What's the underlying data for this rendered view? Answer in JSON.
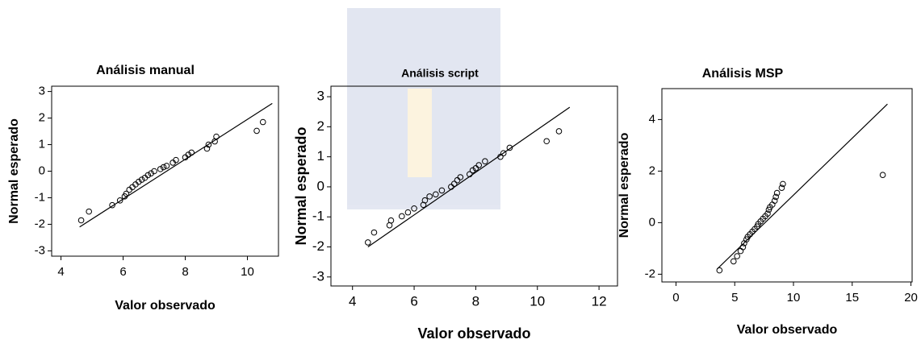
{
  "chart_data": [
    {
      "type": "scatter",
      "title": "Análisis manual",
      "x_label": "Valor observado",
      "y_label": "Normal esperado",
      "x": [
        4.65,
        4.9,
        5.65,
        5.9,
        6.05,
        6.1,
        6.2,
        6.3,
        6.4,
        6.5,
        6.6,
        6.7,
        6.8,
        6.9,
        7.0,
        7.2,
        7.3,
        7.4,
        7.6,
        7.7,
        8.0,
        8.1,
        8.2,
        8.7,
        8.75,
        8.95,
        9.0,
        10.3,
        10.5
      ],
      "values": [
        -1.85,
        -1.52,
        -1.28,
        -1.1,
        -0.95,
        -0.85,
        -0.7,
        -0.6,
        -0.5,
        -0.4,
        -0.32,
        -0.25,
        -0.15,
        -0.08,
        0,
        0.08,
        0.15,
        0.2,
        0.32,
        0.42,
        0.52,
        0.62,
        0.7,
        0.85,
        1.0,
        1.12,
        1.3,
        1.52,
        1.85
      ],
      "reference_line": {
        "x": [
          4.6,
          10.8
        ],
        "y": [
          -2.1,
          2.55
        ]
      },
      "xlim": [
        3.7,
        11.0
      ],
      "ylim": [
        -3.2,
        3.2
      ],
      "xticks": [
        4,
        6,
        8,
        10
      ],
      "yticks": [
        -3,
        -2,
        -1,
        0,
        1,
        2,
        3
      ]
    },
    {
      "type": "scatter",
      "title": "Análisis script",
      "x_label": "Valor observado",
      "y_label": "Normal esperado",
      "x": [
        4.5,
        4.7,
        5.2,
        5.25,
        5.6,
        5.8,
        6.0,
        6.3,
        6.35,
        6.5,
        6.7,
        6.9,
        7.2,
        7.3,
        7.4,
        7.5,
        7.8,
        7.9,
        8.0,
        8.1,
        8.3,
        8.8,
        8.9,
        9.1,
        10.3,
        10.7
      ],
      "values": [
        -1.85,
        -1.52,
        -1.28,
        -1.12,
        -0.98,
        -0.85,
        -0.72,
        -0.6,
        -0.45,
        -0.32,
        -0.25,
        -0.12,
        0,
        0.1,
        0.22,
        0.32,
        0.42,
        0.55,
        0.62,
        0.72,
        0.85,
        1.0,
        1.12,
        1.3,
        1.52,
        1.85
      ],
      "reference_line": {
        "x": [
          4.5,
          11.05
        ],
        "y": [
          -2.0,
          2.65
        ]
      },
      "xlim": [
        3.3,
        12.6
      ],
      "ylim": [
        -3.3,
        3.35
      ],
      "xticks": [
        4,
        6,
        8,
        10,
        12
      ],
      "yticks": [
        -3,
        -2,
        -1,
        0,
        1,
        2,
        3
      ]
    },
    {
      "type": "scatter",
      "title": "Análisis MSP",
      "x_label": "Valor observado",
      "y_label": "Normal esperado",
      "x": [
        3.7,
        4.9,
        5.2,
        5.5,
        5.7,
        5.8,
        6.0,
        6.1,
        6.3,
        6.5,
        6.7,
        6.9,
        7.0,
        7.2,
        7.4,
        7.6,
        7.8,
        7.9,
        8.0,
        8.2,
        8.4,
        8.5,
        8.6,
        9.0,
        9.1,
        17.6
      ],
      "values": [
        -1.85,
        -1.5,
        -1.3,
        -1.1,
        -0.95,
        -0.8,
        -0.65,
        -0.55,
        -0.45,
        -0.35,
        -0.25,
        -0.15,
        -0.05,
        0.05,
        0.15,
        0.25,
        0.35,
        0.5,
        0.6,
        0.7,
        0.85,
        1.0,
        1.15,
        1.35,
        1.5,
        1.85
      ],
      "reference_line": {
        "x": [
          3.5,
          18.0
        ],
        "y": [
          -1.8,
          4.6
        ]
      },
      "xlim": [
        -1.2,
        20.1
      ],
      "ylim": [
        -2.3,
        5.2
      ],
      "xticks": [
        0,
        5,
        10,
        15,
        20
      ],
      "yticks": [
        -2,
        0,
        2,
        4
      ]
    }
  ]
}
